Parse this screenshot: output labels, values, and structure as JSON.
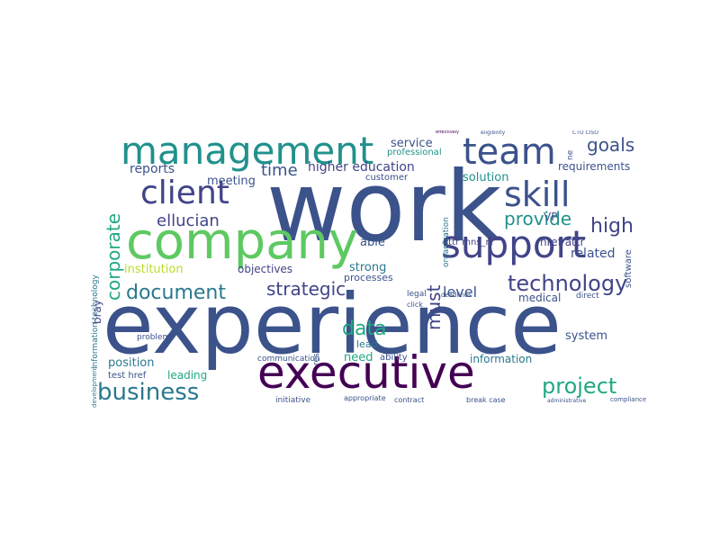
{
  "palette": {
    "dark_navy": "#3b528b",
    "deep_purple": "#440154",
    "indigo": "#414487",
    "teal": "#21918c",
    "sea_green": "#2a788e",
    "green": "#5ec962",
    "light_green": "#22a884",
    "lime": "#b5de2b"
  },
  "words": {
    "work": "work",
    "experience": "experience",
    "company": "company",
    "executive": "executive",
    "management": "management",
    "support": "support",
    "team": "team",
    "client": "client",
    "skill": "skill",
    "business": "business",
    "technology": "technology",
    "document": "document",
    "project": "project",
    "corporate": "corporate",
    "goals": "goals",
    "provide": "provide",
    "high": "high",
    "data": "data",
    "strategic": "strategic",
    "ellucian": "ellucian",
    "time": "time",
    "higher_education": "higher education",
    "reports": "reports",
    "meeting": "meeting",
    "service": "service",
    "solution": "solution",
    "requirements": "requirements",
    "must": "must",
    "position": "position",
    "information": "information",
    "level": "level",
    "system": "system",
    "institution": "institution",
    "objectives": "objectives",
    "related": "related",
    "medical": "medical",
    "leading": "leading",
    "need": "need",
    "strong": "strong",
    "able": "able",
    "processes": "processes",
    "lead": "lead",
    "ability": "ability",
    "professional": "professional",
    "customer": "customer",
    "vp": "VP",
    "href_attr": "href attr",
    "attr_mns": "attr mns_rt'",
    "organization": "organization",
    "software": "software",
    "information_technology": "information technology",
    "bray": "bray",
    "test_href": "test href",
    "initiative": "initiative",
    "appropriate": "appropriate",
    "contract": "contract",
    "break_case": "break case",
    "communication": "communication",
    "resource": "resource",
    "problem": "problem",
    "compliance": "compliance",
    "administrative": "administrative",
    "development": "development",
    "eligibility": "eligibility",
    "effectively": "effectively",
    "cto_ciso": "CTO CISO",
    "deadlines": "deadlines",
    "legal": "legal",
    "click": "click",
    "direct": "direct",
    "ne": "ne"
  }
}
